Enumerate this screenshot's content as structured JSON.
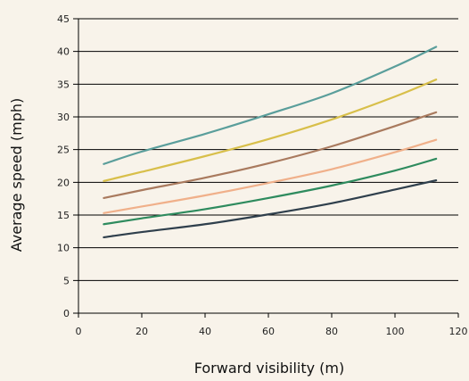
{
  "chart_data": {
    "type": "line",
    "title": "",
    "xlabel": "Forward visibility (m)",
    "ylabel": "Average speed (mph)",
    "xlim": [
      0,
      120
    ],
    "ylim": [
      0,
      45
    ],
    "x_ticks": [
      "0",
      "20",
      "40",
      "60",
      "80",
      "100",
      "120"
    ],
    "y_ticks": [
      "0",
      "5",
      "10",
      "15",
      "20",
      "25",
      "30",
      "35",
      "40",
      "45"
    ],
    "grid": "horizontal",
    "legend": "none",
    "x": [
      8,
      20,
      40,
      60,
      80,
      100,
      113
    ],
    "series": [
      {
        "color": "#5a9e9b",
        "values": [
          22.8,
          24.7,
          27.4,
          30.4,
          33.6,
          37.7,
          40.7
        ]
      },
      {
        "color": "#d8bf4a",
        "values": [
          20.2,
          21.6,
          24.0,
          26.6,
          29.6,
          33.1,
          35.7
        ]
      },
      {
        "color": "#a97a5e",
        "values": [
          17.6,
          18.8,
          20.7,
          22.9,
          25.5,
          28.6,
          30.7
        ]
      },
      {
        "color": "#f0b08a",
        "values": [
          15.3,
          16.3,
          18.0,
          19.9,
          22.0,
          24.6,
          26.5
        ]
      },
      {
        "color": "#2e8b5e",
        "values": [
          13.6,
          14.5,
          15.9,
          17.6,
          19.5,
          21.8,
          23.6
        ]
      },
      {
        "color": "#2f3f4c",
        "values": [
          11.6,
          12.4,
          13.6,
          15.1,
          16.8,
          18.9,
          20.3
        ]
      }
    ]
  }
}
